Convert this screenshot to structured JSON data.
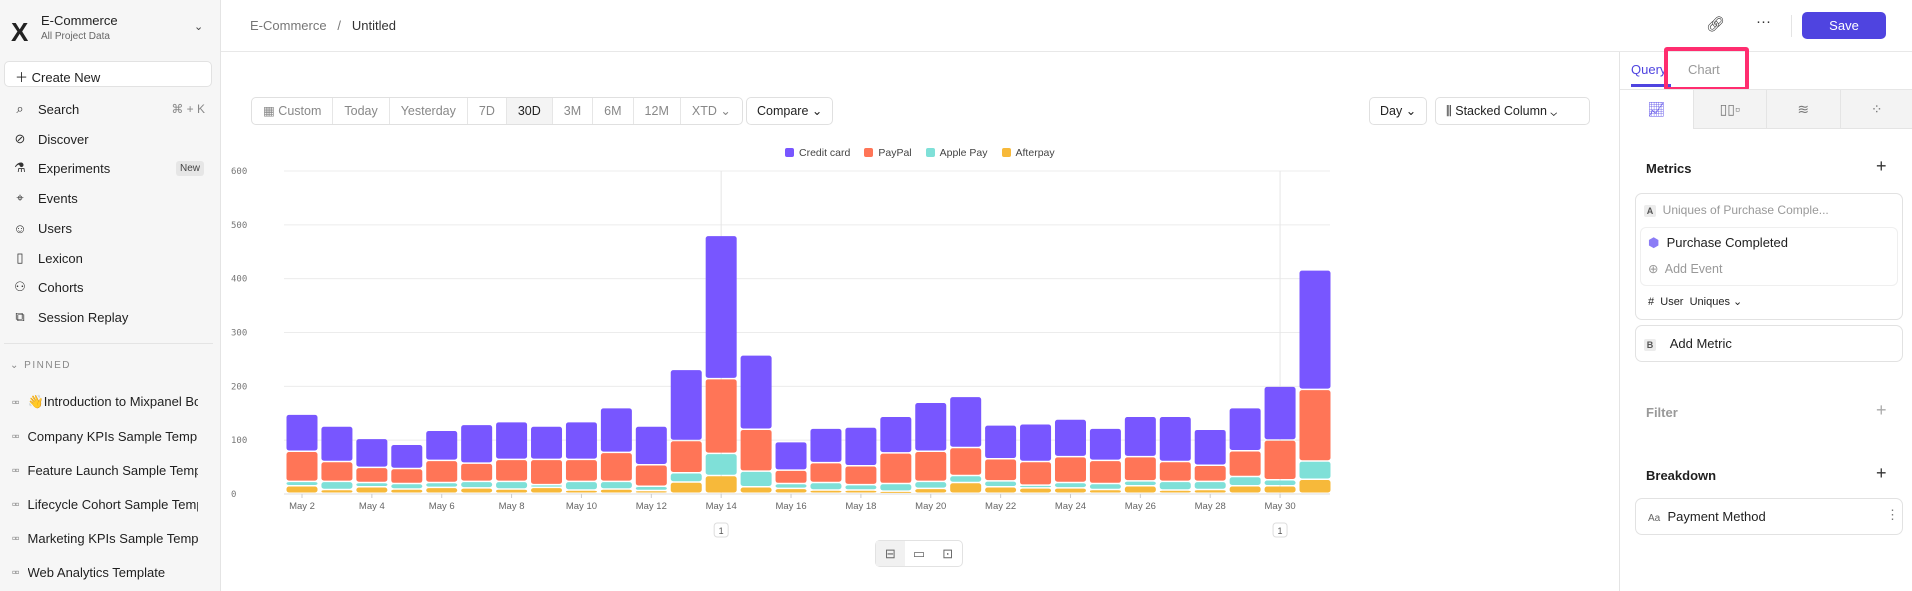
{
  "sidebar": {
    "project_name": "E-Commerce",
    "project_scope": "All Project Data",
    "create_new": "Create New",
    "nav": [
      {
        "label": "Search",
        "icon": "search-icon",
        "shortcut": "⌘ + K"
      },
      {
        "label": "Discover",
        "icon": "compass-icon"
      },
      {
        "label": "Experiments",
        "icon": "flask-icon",
        "badge": "New"
      },
      {
        "label": "Events",
        "icon": "cursor-click-icon"
      },
      {
        "label": "Users",
        "icon": "users-icon"
      },
      {
        "label": "Lexicon",
        "icon": "book-icon"
      },
      {
        "label": "Cohorts",
        "icon": "group-icon"
      },
      {
        "label": "Session Replay",
        "icon": "play-icon"
      }
    ],
    "pinned_label": "PINNED",
    "pinned": [
      {
        "emoji": "👋",
        "label": "Introduction to Mixpanel Bo"
      },
      {
        "label": "Company KPIs Sample Templat"
      },
      {
        "label": "Feature Launch Sample Templa"
      },
      {
        "label": "Lifecycle Cohort Sample Temp"
      },
      {
        "label": "Marketing KPIs Sample Templat"
      },
      {
        "label": "Web Analytics Template"
      }
    ]
  },
  "header": {
    "breadcrumb_root": "E-Commerce",
    "breadcrumb_sep": "/",
    "title": "Untitled",
    "save": "Save"
  },
  "toolbar": {
    "date_ranges": [
      "Custom",
      "Today",
      "Yesterday",
      "7D",
      "30D",
      "3M",
      "6M",
      "12M",
      "XTD"
    ],
    "active_range": "30D",
    "compare": "Compare",
    "interval": "Day",
    "chart_type": "Stacked Column"
  },
  "chart_data": {
    "type": "bar",
    "stacked": true,
    "categories": [
      "May 2",
      "May 3",
      "May 4",
      "May 5",
      "May 6",
      "May 7",
      "May 8",
      "May 9",
      "May 10",
      "May 11",
      "May 12",
      "May 13",
      "May 14",
      "May 15",
      "May 16",
      "May 17",
      "May 18",
      "May 19",
      "May 20",
      "May 21",
      "May 22",
      "May 23",
      "May 24",
      "May 25",
      "May 26",
      "May 27",
      "May 28",
      "May 29",
      "May 30",
      "May 31"
    ],
    "tick_labels": [
      "May 2",
      "May 4",
      "May 6",
      "May 8",
      "May 10",
      "May 12",
      "May 14",
      "May 16",
      "May 18",
      "May 20",
      "May 22",
      "May 24",
      "May 26",
      "May 28",
      "May 30"
    ],
    "series": [
      {
        "name": "Afterpay",
        "color": "#f7b93a",
        "values": [
          14,
          7,
          12,
          8,
          11,
          10,
          8,
          11,
          6,
          8,
          5,
          21,
          33,
          12,
          9,
          6,
          6,
          4,
          9,
          20,
          12,
          10,
          10,
          7,
          14,
          6,
          7,
          14,
          14,
          26
        ]
      },
      {
        "name": "Apple Pay",
        "color": "#7fe0d8",
        "values": [
          8,
          15,
          8,
          10,
          9,
          12,
          14,
          5,
          16,
          14,
          8,
          17,
          41,
          29,
          9,
          14,
          10,
          14,
          13,
          13,
          11,
          5,
          10,
          11,
          9,
          16,
          15,
          17,
          11,
          34
        ]
      },
      {
        "name": "PayPal",
        "color": "#ff7557",
        "values": [
          56,
          37,
          28,
          28,
          41,
          34,
          41,
          47,
          41,
          54,
          40,
          60,
          139,
          78,
          25,
          37,
          35,
          57,
          56,
          52,
          41,
          44,
          48,
          43,
          45,
          37,
          30,
          48,
          74,
          133
        ]
      },
      {
        "name": "Credit card",
        "color": "#7856ff",
        "values": [
          69,
          66,
          54,
          45,
          56,
          72,
          70,
          62,
          70,
          83,
          72,
          132,
          266,
          138,
          53,
          64,
          72,
          68,
          91,
          95,
          63,
          70,
          70,
          60,
          75,
          84,
          67,
          80,
          100,
          222
        ]
      }
    ],
    "legend_order": [
      "Credit card",
      "PayPal",
      "Apple Pay",
      "Afterpay"
    ],
    "legend_position": "top",
    "ylim": [
      0,
      600
    ],
    "yticks": [
      "0",
      "100",
      "200",
      "300",
      "400",
      "500",
      "600"
    ],
    "grid": true,
    "annotations": [
      {
        "x": "May 14",
        "label": "1"
      },
      {
        "x": "May 30",
        "label": "1"
      }
    ]
  },
  "panel": {
    "tabs": [
      "Query",
      "Chart"
    ],
    "active_tab": "Query",
    "icon_tabs": [
      "insights-icon",
      "funnels-icon",
      "flows-icon",
      "retention-icon"
    ],
    "metrics_label": "Metrics",
    "metric_a": {
      "letter": "A",
      "title": "Uniques of Purchase Comple...",
      "event": "Purchase Completed",
      "add_event": "Add Event",
      "measure_prefix": "#",
      "measure_entity": "User",
      "measure": "Uniques"
    },
    "metric_b": {
      "letter": "B",
      "label": "Add Metric"
    },
    "filter_label": "Filter",
    "breakdown_label": "Breakdown",
    "breakdown_type": "Aa",
    "breakdown_item": "Payment Method"
  },
  "highlight_color": "#ff2d6f",
  "accent_color": "#4f44e0"
}
